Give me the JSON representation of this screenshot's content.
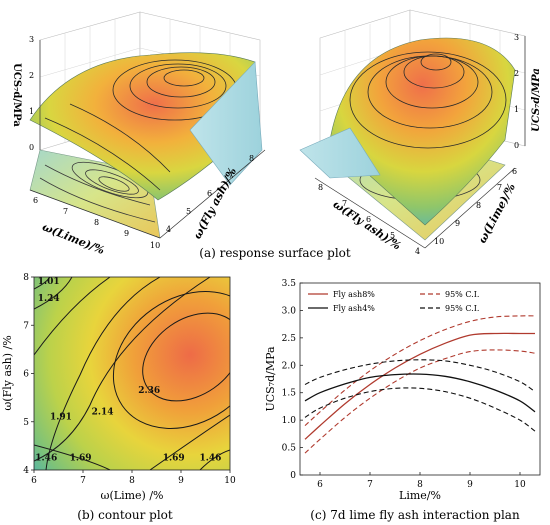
{
  "panel_a": {
    "caption": "(a) response surface plot",
    "left": {
      "z_label": "UCS₇d/MPa",
      "x_label": "ω(Lime)/%",
      "y_label": "ω(Fly ash)/%",
      "z_ticks": [
        "0",
        "1",
        "2",
        "3"
      ],
      "x_ticks": [
        "6",
        "7",
        "8",
        "9",
        "10"
      ],
      "y_ticks": [
        "4",
        "5",
        "6",
        "7",
        "8"
      ]
    },
    "right": {
      "z_label": "UCS₇d/MPa",
      "x_label": "ω(Fly ash)/%",
      "y_label": "ω(Lime)/%",
      "z_ticks": [
        "0",
        "1",
        "2",
        "3"
      ],
      "x_ticks": [
        "8",
        "7",
        "6",
        "5",
        "4"
      ],
      "y_ticks": [
        "10",
        "9",
        "8",
        "7",
        "6"
      ]
    }
  },
  "chart_data": [
    {
      "type": "heatmap",
      "caption": "(b) contour plot",
      "xlabel": "ω(Lime) /%",
      "ylabel": "ω(Fly ash) /%",
      "xlim": [
        6,
        10
      ],
      "ylim": [
        4,
        8
      ],
      "x_ticks": [
        "6",
        "7",
        "8",
        "9",
        "10"
      ],
      "y_ticks": [
        "4",
        "5",
        "6",
        "7",
        "8"
      ],
      "peak": {
        "x": 9.1,
        "y": 6.7
      },
      "contour_labels": [
        {
          "text": "1.01",
          "x": 6.3,
          "y": 7.85
        },
        {
          "text": "1.24",
          "x": 6.3,
          "y": 7.5
        },
        {
          "text": "2.36",
          "x": 8.35,
          "y": 5.6
        },
        {
          "text": "2.14",
          "x": 7.4,
          "y": 5.15
        },
        {
          "text": "1.91",
          "x": 6.55,
          "y": 5.05
        },
        {
          "text": "1.46",
          "x": 6.25,
          "y": 4.2
        },
        {
          "text": "1.69",
          "x": 6.95,
          "y": 4.2
        },
        {
          "text": "1.69",
          "x": 8.85,
          "y": 4.2
        },
        {
          "text": "1.46",
          "x": 9.6,
          "y": 4.2
        }
      ]
    },
    {
      "type": "line",
      "caption": "(c) 7d lime fly ash interaction plan",
      "xlabel": "Lime/%",
      "ylabel": "UCS₇d/MPa",
      "xlim": [
        5.6,
        10.4
      ],
      "ylim": [
        0,
        3.5
      ],
      "x_ticks": [
        6,
        7,
        8,
        9,
        10
      ],
      "y_ticks": [
        0,
        0.5,
        1.0,
        1.5,
        2.0,
        2.5,
        3.0,
        3.5
      ],
      "legend_position": "top-left",
      "series": [
        {
          "name": "Fly ash8%",
          "color": "#b03a2e",
          "dash": "solid",
          "x": [
            5.7,
            6.0,
            6.5,
            7.0,
            7.5,
            8.0,
            8.5,
            9.0,
            9.5,
            10.0,
            10.3
          ],
          "y": [
            0.65,
            0.9,
            1.3,
            1.65,
            1.95,
            2.2,
            2.4,
            2.55,
            2.58,
            2.58,
            2.58
          ]
        },
        {
          "name": "95% C.I.",
          "color": "#b03a2e",
          "dash": "dashed",
          "x": [
            5.7,
            6.0,
            6.5,
            7.0,
            7.5,
            8.0,
            8.5,
            9.0,
            9.5,
            10.0,
            10.3
          ],
          "y": [
            0.9,
            1.15,
            1.55,
            1.9,
            2.2,
            2.45,
            2.65,
            2.8,
            2.88,
            2.9,
            2.9
          ]
        },
        {
          "name": "",
          "color": "#b03a2e",
          "dash": "dashed",
          "x": [
            5.7,
            6.0,
            6.5,
            7.0,
            7.5,
            8.0,
            8.5,
            9.0,
            9.5,
            10.0,
            10.3
          ],
          "y": [
            0.4,
            0.65,
            1.05,
            1.4,
            1.7,
            1.95,
            2.12,
            2.25,
            2.28,
            2.26,
            2.22
          ]
        },
        {
          "name": "Fly ash4%",
          "color": "#111111",
          "dash": "solid",
          "x": [
            5.7,
            6.0,
            6.5,
            7.0,
            7.5,
            8.0,
            8.5,
            9.0,
            9.5,
            10.0,
            10.3
          ],
          "y": [
            1.35,
            1.5,
            1.66,
            1.78,
            1.83,
            1.84,
            1.8,
            1.7,
            1.55,
            1.35,
            1.15
          ]
        },
        {
          "name": "95% C.I.",
          "color": "#111111",
          "dash": "dashed",
          "x": [
            5.7,
            6.0,
            6.5,
            7.0,
            7.5,
            8.0,
            8.5,
            9.0,
            9.5,
            10.0,
            10.3
          ],
          "y": [
            1.65,
            1.78,
            1.92,
            2.02,
            2.08,
            2.1,
            2.08,
            2.0,
            1.88,
            1.7,
            1.52
          ]
        },
        {
          "name": "",
          "color": "#111111",
          "dash": "dashed",
          "x": [
            5.7,
            6.0,
            6.5,
            7.0,
            7.5,
            8.0,
            8.5,
            9.0,
            9.5,
            10.0,
            10.3
          ],
          "y": [
            1.05,
            1.22,
            1.4,
            1.52,
            1.58,
            1.58,
            1.52,
            1.4,
            1.22,
            1.0,
            0.8
          ]
        }
      ]
    }
  ]
}
